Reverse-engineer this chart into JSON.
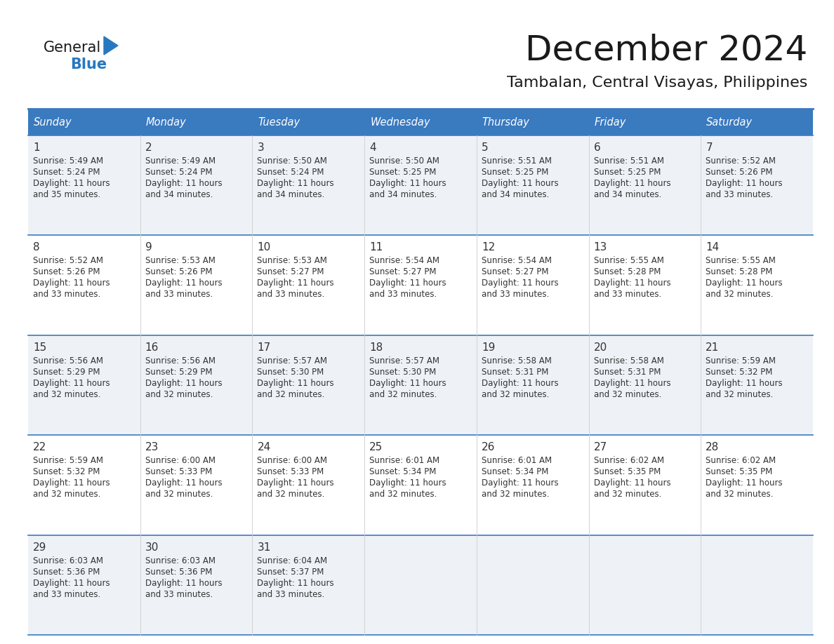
{
  "title": "December 2024",
  "subtitle": "Tambalan, Central Visayas, Philippines",
  "days_of_week": [
    "Sunday",
    "Monday",
    "Tuesday",
    "Wednesday",
    "Thursday",
    "Friday",
    "Saturday"
  ],
  "header_bg": "#3a7abf",
  "header_text": "#ffffff",
  "cell_bg_odd": "#eef2f7",
  "cell_bg_even": "#ffffff",
  "row_line_color": "#3a7abf",
  "text_color": "#333333",
  "logo_general_color": "#1a1a1a",
  "logo_blue_color": "#2878c0",
  "calendar_data": [
    {
      "day": 1,
      "col": 0,
      "row": 0,
      "sunrise": "5:49 AM",
      "sunset": "5:24 PM",
      "daylight_line1": "Daylight: 11 hours",
      "daylight_line2": "and 35 minutes."
    },
    {
      "day": 2,
      "col": 1,
      "row": 0,
      "sunrise": "5:49 AM",
      "sunset": "5:24 PM",
      "daylight_line1": "Daylight: 11 hours",
      "daylight_line2": "and 34 minutes."
    },
    {
      "day": 3,
      "col": 2,
      "row": 0,
      "sunrise": "5:50 AM",
      "sunset": "5:24 PM",
      "daylight_line1": "Daylight: 11 hours",
      "daylight_line2": "and 34 minutes."
    },
    {
      "day": 4,
      "col": 3,
      "row": 0,
      "sunrise": "5:50 AM",
      "sunset": "5:25 PM",
      "daylight_line1": "Daylight: 11 hours",
      "daylight_line2": "and 34 minutes."
    },
    {
      "day": 5,
      "col": 4,
      "row": 0,
      "sunrise": "5:51 AM",
      "sunset": "5:25 PM",
      "daylight_line1": "Daylight: 11 hours",
      "daylight_line2": "and 34 minutes."
    },
    {
      "day": 6,
      "col": 5,
      "row": 0,
      "sunrise": "5:51 AM",
      "sunset": "5:25 PM",
      "daylight_line1": "Daylight: 11 hours",
      "daylight_line2": "and 34 minutes."
    },
    {
      "day": 7,
      "col": 6,
      "row": 0,
      "sunrise": "5:52 AM",
      "sunset": "5:26 PM",
      "daylight_line1": "Daylight: 11 hours",
      "daylight_line2": "and 33 minutes."
    },
    {
      "day": 8,
      "col": 0,
      "row": 1,
      "sunrise": "5:52 AM",
      "sunset": "5:26 PM",
      "daylight_line1": "Daylight: 11 hours",
      "daylight_line2": "and 33 minutes."
    },
    {
      "day": 9,
      "col": 1,
      "row": 1,
      "sunrise": "5:53 AM",
      "sunset": "5:26 PM",
      "daylight_line1": "Daylight: 11 hours",
      "daylight_line2": "and 33 minutes."
    },
    {
      "day": 10,
      "col": 2,
      "row": 1,
      "sunrise": "5:53 AM",
      "sunset": "5:27 PM",
      "daylight_line1": "Daylight: 11 hours",
      "daylight_line2": "and 33 minutes."
    },
    {
      "day": 11,
      "col": 3,
      "row": 1,
      "sunrise": "5:54 AM",
      "sunset": "5:27 PM",
      "daylight_line1": "Daylight: 11 hours",
      "daylight_line2": "and 33 minutes."
    },
    {
      "day": 12,
      "col": 4,
      "row": 1,
      "sunrise": "5:54 AM",
      "sunset": "5:27 PM",
      "daylight_line1": "Daylight: 11 hours",
      "daylight_line2": "and 33 minutes."
    },
    {
      "day": 13,
      "col": 5,
      "row": 1,
      "sunrise": "5:55 AM",
      "sunset": "5:28 PM",
      "daylight_line1": "Daylight: 11 hours",
      "daylight_line2": "and 33 minutes."
    },
    {
      "day": 14,
      "col": 6,
      "row": 1,
      "sunrise": "5:55 AM",
      "sunset": "5:28 PM",
      "daylight_line1": "Daylight: 11 hours",
      "daylight_line2": "and 32 minutes."
    },
    {
      "day": 15,
      "col": 0,
      "row": 2,
      "sunrise": "5:56 AM",
      "sunset": "5:29 PM",
      "daylight_line1": "Daylight: 11 hours",
      "daylight_line2": "and 32 minutes."
    },
    {
      "day": 16,
      "col": 1,
      "row": 2,
      "sunrise": "5:56 AM",
      "sunset": "5:29 PM",
      "daylight_line1": "Daylight: 11 hours",
      "daylight_line2": "and 32 minutes."
    },
    {
      "day": 17,
      "col": 2,
      "row": 2,
      "sunrise": "5:57 AM",
      "sunset": "5:30 PM",
      "daylight_line1": "Daylight: 11 hours",
      "daylight_line2": "and 32 minutes."
    },
    {
      "day": 18,
      "col": 3,
      "row": 2,
      "sunrise": "5:57 AM",
      "sunset": "5:30 PM",
      "daylight_line1": "Daylight: 11 hours",
      "daylight_line2": "and 32 minutes."
    },
    {
      "day": 19,
      "col": 4,
      "row": 2,
      "sunrise": "5:58 AM",
      "sunset": "5:31 PM",
      "daylight_line1": "Daylight: 11 hours",
      "daylight_line2": "and 32 minutes."
    },
    {
      "day": 20,
      "col": 5,
      "row": 2,
      "sunrise": "5:58 AM",
      "sunset": "5:31 PM",
      "daylight_line1": "Daylight: 11 hours",
      "daylight_line2": "and 32 minutes."
    },
    {
      "day": 21,
      "col": 6,
      "row": 2,
      "sunrise": "5:59 AM",
      "sunset": "5:32 PM",
      "daylight_line1": "Daylight: 11 hours",
      "daylight_line2": "and 32 minutes."
    },
    {
      "day": 22,
      "col": 0,
      "row": 3,
      "sunrise": "5:59 AM",
      "sunset": "5:32 PM",
      "daylight_line1": "Daylight: 11 hours",
      "daylight_line2": "and 32 minutes."
    },
    {
      "day": 23,
      "col": 1,
      "row": 3,
      "sunrise": "6:00 AM",
      "sunset": "5:33 PM",
      "daylight_line1": "Daylight: 11 hours",
      "daylight_line2": "and 32 minutes."
    },
    {
      "day": 24,
      "col": 2,
      "row": 3,
      "sunrise": "6:00 AM",
      "sunset": "5:33 PM",
      "daylight_line1": "Daylight: 11 hours",
      "daylight_line2": "and 32 minutes."
    },
    {
      "day": 25,
      "col": 3,
      "row": 3,
      "sunrise": "6:01 AM",
      "sunset": "5:34 PM",
      "daylight_line1": "Daylight: 11 hours",
      "daylight_line2": "and 32 minutes."
    },
    {
      "day": 26,
      "col": 4,
      "row": 3,
      "sunrise": "6:01 AM",
      "sunset": "5:34 PM",
      "daylight_line1": "Daylight: 11 hours",
      "daylight_line2": "and 32 minutes."
    },
    {
      "day": 27,
      "col": 5,
      "row": 3,
      "sunrise": "6:02 AM",
      "sunset": "5:35 PM",
      "daylight_line1": "Daylight: 11 hours",
      "daylight_line2": "and 32 minutes."
    },
    {
      "day": 28,
      "col": 6,
      "row": 3,
      "sunrise": "6:02 AM",
      "sunset": "5:35 PM",
      "daylight_line1": "Daylight: 11 hours",
      "daylight_line2": "and 32 minutes."
    },
    {
      "day": 29,
      "col": 0,
      "row": 4,
      "sunrise": "6:03 AM",
      "sunset": "5:36 PM",
      "daylight_line1": "Daylight: 11 hours",
      "daylight_line2": "and 33 minutes."
    },
    {
      "day": 30,
      "col": 1,
      "row": 4,
      "sunrise": "6:03 AM",
      "sunset": "5:36 PM",
      "daylight_line1": "Daylight: 11 hours",
      "daylight_line2": "and 33 minutes."
    },
    {
      "day": 31,
      "col": 2,
      "row": 4,
      "sunrise": "6:04 AM",
      "sunset": "5:37 PM",
      "daylight_line1": "Daylight: 11 hours",
      "daylight_line2": "and 33 minutes."
    }
  ],
  "num_rows": 5,
  "num_cols": 7
}
